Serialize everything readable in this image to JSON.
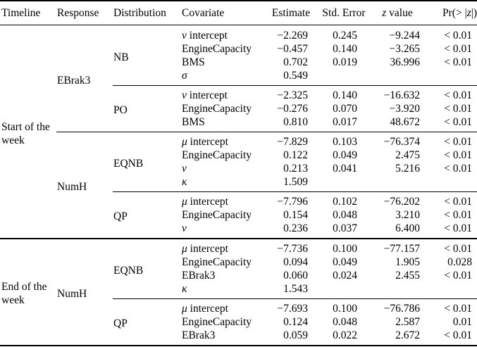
{
  "page": {
    "background_color": "#ffffff",
    "text_color": "#000000"
  },
  "table": {
    "headers": [
      {
        "label": "Timeline"
      },
      {
        "label": "Response"
      },
      {
        "label": "Distribution"
      },
      {
        "label": "Covariate"
      },
      {
        "label": "Estimate"
      },
      {
        "label": "Std. Error"
      },
      {
        "label": "z value"
      },
      {
        "label": "Pr(> |z|)"
      }
    ],
    "sections": [
      {
        "timeline": "Start of the week",
        "responses": [
          {
            "response": "EBrak3",
            "distributions": [
              {
                "name": "NB",
                "rows": [
                  [
                    "ν intercept",
                    "−2.269",
                    "0.245",
                    "−9.244",
                    "< 0.01"
                  ],
                  [
                    "EngineCapacity",
                    "−0.457",
                    "0.140",
                    "−3.265",
                    "< 0.01"
                  ],
                  [
                    "BMS",
                    "0.702",
                    "0.019",
                    "36.996",
                    "< 0.01"
                  ],
                  [
                    "σ",
                    "0.549",
                    "",
                    "",
                    ""
                  ]
                ]
              },
              {
                "name": "PO",
                "rows": [
                  [
                    "ν intercept",
                    "−2.325",
                    "0.140",
                    "−16.632",
                    "< 0.01"
                  ],
                  [
                    "EngineCapacity",
                    "−0.276",
                    "0.070",
                    "−3.920",
                    "< 0.01"
                  ],
                  [
                    "BMS",
                    "0.810",
                    "0.017",
                    "48.672",
                    "< 0.01"
                  ]
                ]
              }
            ]
          },
          {
            "response": "NumH",
            "distributions": [
              {
                "name": "EQNB",
                "rows": [
                  [
                    "μ intercept",
                    "−7.829",
                    "0.103",
                    "−76.374",
                    "< 0.01"
                  ],
                  [
                    "EngineCapacity",
                    "0.122",
                    "0.049",
                    "2.475",
                    "< 0.01"
                  ],
                  [
                    "ν",
                    "0.213",
                    "0.041",
                    "5.216",
                    "< 0.01"
                  ],
                  [
                    "κ",
                    "1.509",
                    "",
                    "",
                    ""
                  ]
                ]
              },
              {
                "name": "QP",
                "rows": [
                  [
                    "μ intercept",
                    "−7.796",
                    "0.102",
                    "−76.202",
                    "< 0.01"
                  ],
                  [
                    "EngineCapacity",
                    "0.154",
                    "0.048",
                    "3.210",
                    "< 0.01"
                  ],
                  [
                    "ν",
                    "0.236",
                    "0.037",
                    "6.400",
                    "< 0.01"
                  ]
                ]
              }
            ]
          }
        ]
      },
      {
        "timeline": "End of the week",
        "responses": [
          {
            "response": "NumH",
            "distributions": [
              {
                "name": "EQNB",
                "rows": [
                  [
                    "μ intercept",
                    "−7.736",
                    "0.100",
                    "−77.157",
                    "< 0.01"
                  ],
                  [
                    "EngineCapacity",
                    "0.094",
                    "0.049",
                    "1.905",
                    "0.028"
                  ],
                  [
                    "EBrak3",
                    "0.060",
                    "0.024",
                    "2.455",
                    "< 0.01"
                  ],
                  [
                    "κ",
                    "1.543",
                    "",
                    "",
                    ""
                  ]
                ]
              },
              {
                "name": "QP",
                "rows": [
                  [
                    "μ intercept",
                    "−7.693",
                    "0.100",
                    "−76.786",
                    "< 0.01"
                  ],
                  [
                    "EngineCapacity",
                    "0.124",
                    "0.048",
                    "2.587",
                    "0.01"
                  ],
                  [
                    "EBrak3",
                    "0.059",
                    "0.022",
                    "2.672",
                    "< 0.01"
                  ]
                ]
              }
            ]
          }
        ]
      }
    ]
  }
}
